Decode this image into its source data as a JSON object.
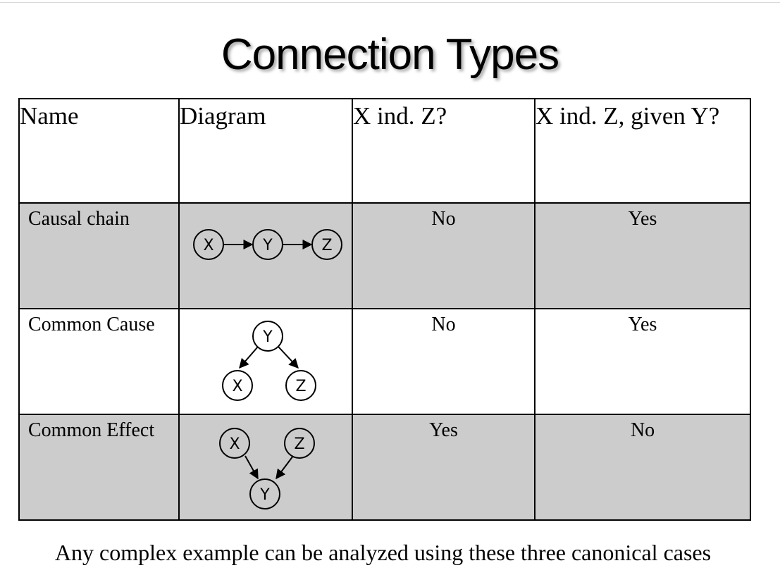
{
  "slide": {
    "title": "Connection Types",
    "caption": "Any complex example can be analyzed using these three canonical cases"
  },
  "table": {
    "headers": [
      "Name",
      "Diagram",
      "X ind. Z?",
      "X ind. Z, given Y?"
    ],
    "rows": [
      {
        "name": "Causal chain",
        "x_ind_z": "No",
        "x_ind_z_given_y": "Yes",
        "shaded": true,
        "diagram": {
          "nodes": [
            "X",
            "Y",
            "Z"
          ],
          "edges": [
            "X→Y",
            "Y→Z"
          ]
        }
      },
      {
        "name": "Common Cause",
        "x_ind_z": "No",
        "x_ind_z_given_y": "Yes",
        "shaded": false,
        "diagram": {
          "nodes": [
            "Y",
            "X",
            "Z"
          ],
          "edges": [
            "Y→X",
            "Y→Z"
          ]
        }
      },
      {
        "name": "Common Effect",
        "x_ind_z": "Yes",
        "x_ind_z_given_y": "No",
        "shaded": true,
        "diagram": {
          "nodes": [
            "X",
            "Z",
            "Y"
          ],
          "edges": [
            "X→Y",
            "Z→Y"
          ]
        }
      }
    ]
  },
  "colors": {
    "shaded_row": "#cccccc",
    "border": "#000000"
  }
}
